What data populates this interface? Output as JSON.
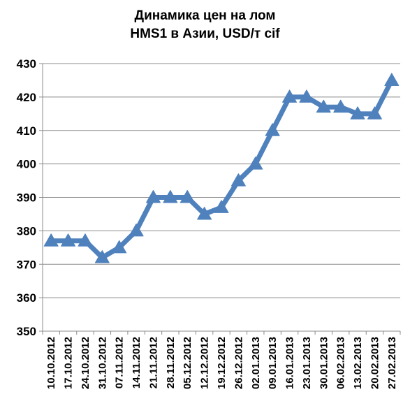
{
  "chart_data": {
    "type": "line",
    "title_line1": "Динамика цен на лом",
    "title_line2": "HMS1 в Азии, USD/т cif",
    "xlabel": "",
    "ylabel": "",
    "ylim": [
      350,
      430
    ],
    "y_ticks": [
      "350",
      "360",
      "370",
      "380",
      "390",
      "400",
      "410",
      "420",
      "430"
    ],
    "grid": "horizontal",
    "legend": "none",
    "line_color": "#4F81BD",
    "categories": [
      "10.10.2012",
      "17.10.2012",
      "24.10.2012",
      "31.10.2012",
      "07.11.2012",
      "14.11.2012",
      "21.11.2012",
      "28.11.2012",
      "05.12.2012",
      "12.12.2012",
      "19.12.2012",
      "26.12.2012",
      "02.01.2013",
      "09.01.2013",
      "16.01.2013",
      "23.01.2013",
      "30.01.2013",
      "06.02.2013",
      "13.02.2013",
      "20.02.2013",
      "27.02.2013"
    ],
    "x_ticks": [
      "10.10.2012",
      "17.10.2012",
      "24.10.2012",
      "31.10.2012",
      "07.11.2012",
      "14.11.2012",
      "21.11.2012",
      "28.11.2012",
      "05.12.2012",
      "12.12.2012",
      "19.12.2012",
      "26.12.2012",
      "02.01.2013",
      "09.01.2013",
      "16.01.2013",
      "23.01.2013",
      "30.01.2013",
      "06.02.2013",
      "13.02.2013",
      "20.02.2013",
      "27.02.2013"
    ],
    "values": [
      377,
      377,
      377,
      372,
      375,
      380,
      390,
      390,
      390,
      385,
      387,
      395,
      400,
      410,
      420,
      420,
      417,
      417,
      415,
      415,
      425
    ]
  }
}
